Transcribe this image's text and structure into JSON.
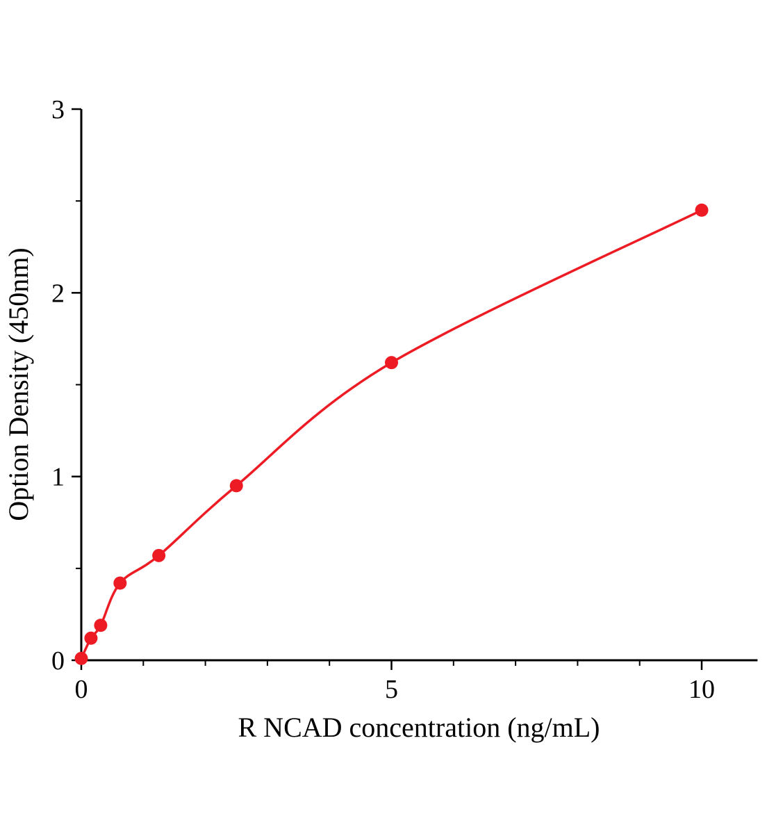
{
  "chart_data": {
    "type": "scatter",
    "title": "",
    "xlabel": "R NCAD concentration（ng/mL）",
    "ylabel": "Option Density（450nm）",
    "x_unit": "ng/mL",
    "y_unit": "OD 450nm",
    "x": [
      0,
      0.156,
      0.3125,
      0.625,
      1.25,
      2.5,
      5,
      10
    ],
    "y": [
      0.01,
      0.12,
      0.19,
      0.42,
      0.57,
      0.95,
      1.62,
      2.45
    ],
    "curve": {
      "style": "smooth-fit-through-points",
      "x": [
        0,
        0.156,
        0.3125,
        0.625,
        1.25,
        2.5,
        5,
        10
      ],
      "y": [
        0.01,
        0.12,
        0.19,
        0.42,
        0.57,
        0.95,
        1.62,
        2.45
      ]
    },
    "xlim": [
      0,
      10.9
    ],
    "ylim": [
      0,
      3
    ],
    "x_major_ticks": [
      0,
      5,
      10
    ],
    "x_minor_ticks": [
      1,
      2,
      3,
      4,
      6,
      7,
      8,
      9
    ],
    "y_major_ticks": [
      0,
      1,
      2,
      3
    ],
    "y_minor_ticks": [
      0.5,
      1.5,
      2.5
    ],
    "grid": false,
    "legend": null,
    "point_color": "#ed1c24",
    "curve_color": "#ed1c24",
    "axis_color": "#000000",
    "background_color": "#ffffff"
  }
}
